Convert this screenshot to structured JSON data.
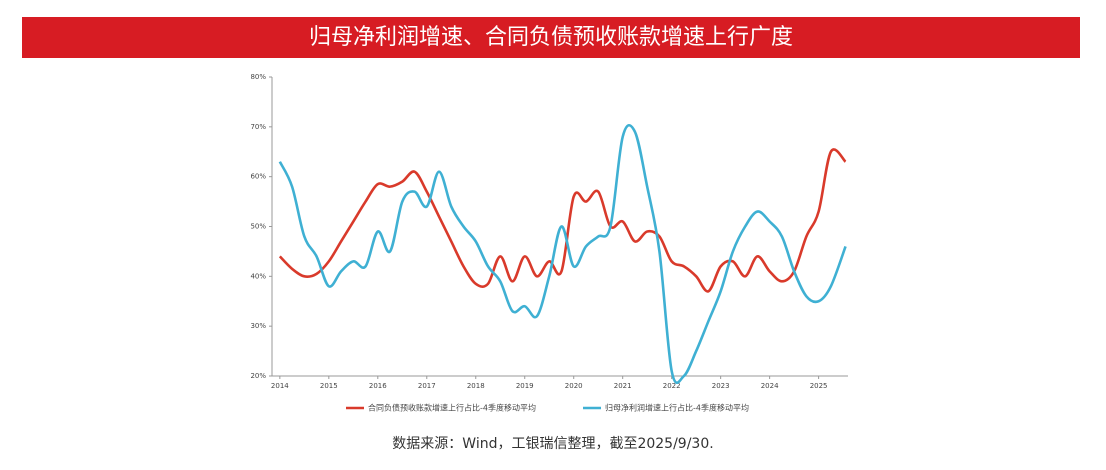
{
  "chart_data": {
    "type": "line",
    "title": "归母净利润增速、合同负债预收账款增速上行广度",
    "source": "数据来源：Wind，工银瑞信整理，截至2025/9/30.",
    "x": [
      2014,
      2014.25,
      2014.5,
      2014.75,
      2015,
      2015.25,
      2015.5,
      2015.75,
      2016,
      2016.25,
      2016.5,
      2016.75,
      2017,
      2017.25,
      2017.5,
      2017.75,
      2018,
      2018.25,
      2018.5,
      2018.75,
      2019,
      2019.25,
      2019.5,
      2019.75,
      2020,
      2020.25,
      2020.5,
      2020.75,
      2021,
      2021.25,
      2021.5,
      2021.75,
      2022,
      2022.25,
      2022.5,
      2022.75,
      2023,
      2023.25,
      2023.5,
      2023.75,
      2024,
      2024.25,
      2024.5,
      2024.75,
      2025,
      2025.25,
      2025.55
    ],
    "series": [
      {
        "name": "合同负债预收账款增速上行占比-4季度移动平均",
        "color": "#d93a2b",
        "values": [
          44,
          41.5,
          40,
          40.5,
          43,
          47,
          51,
          55,
          58.5,
          58,
          59,
          61,
          57,
          52,
          47,
          42,
          38.5,
          38.5,
          44,
          39,
          44,
          40,
          43,
          41,
          56,
          55,
          57,
          50,
          51,
          47,
          49,
          48,
          43,
          42,
          40,
          37,
          42,
          43,
          40,
          44,
          41,
          39,
          41,
          48,
          53,
          65,
          63
        ]
      },
      {
        "name": "归母净利润增速上行占比-4季度移动平均",
        "color": "#3fb0d3",
        "values": [
          63,
          58,
          48,
          44,
          38,
          41,
          43,
          42,
          49,
          45,
          55,
          57,
          54,
          61,
          54,
          50,
          47,
          42,
          39,
          33,
          34,
          32,
          40,
          50,
          42,
          46,
          48,
          50,
          68,
          69,
          58,
          45,
          21,
          20,
          25,
          31,
          37,
          45,
          50,
          53,
          51,
          48,
          41,
          36,
          35,
          38,
          46
        ]
      }
    ],
    "xlim": [
      2013.84,
      2025.6
    ],
    "xticks": [
      2014,
      2015,
      2016,
      2017,
      2018,
      2019,
      2020,
      2021,
      2022,
      2023,
      2024,
      2025
    ],
    "ylim": [
      20,
      80
    ],
    "yticks": [
      {
        "value": 20,
        "label": "20%"
      },
      {
        "value": 30,
        "label": "30%"
      },
      {
        "value": 40,
        "label": "40%"
      },
      {
        "value": 50,
        "label": "50%"
      },
      {
        "value": 60,
        "label": "60%"
      },
      {
        "value": 70,
        "label": "70%"
      },
      {
        "value": 80,
        "label": "80%"
      }
    ]
  }
}
